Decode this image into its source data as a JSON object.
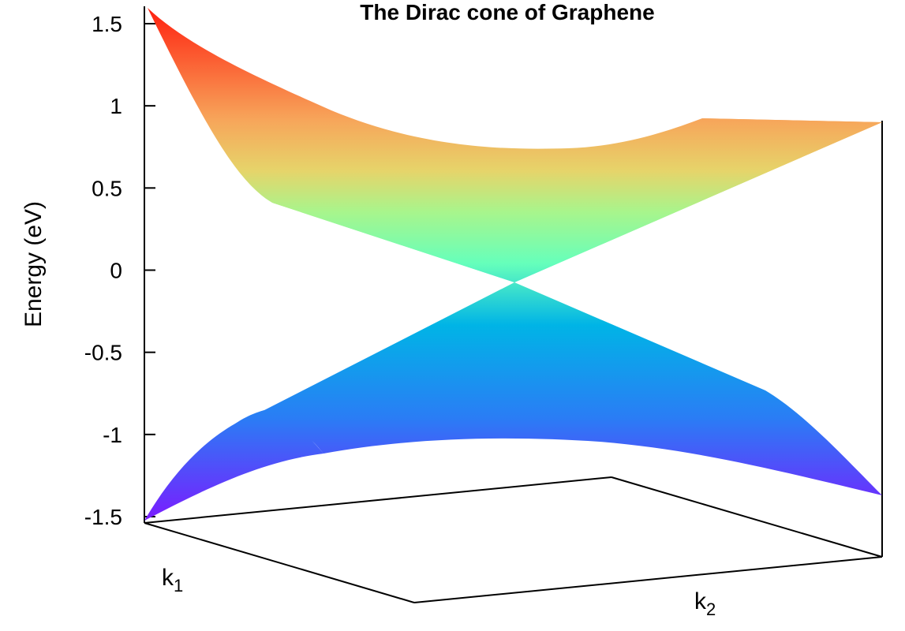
{
  "chart_data": {
    "type": "surface",
    "title": "The Dirac cone of Graphene",
    "zlabel": "Energy (eV)",
    "xlabel_base": "k",
    "xlabel_sub": "1",
    "ylabel_base": "k",
    "ylabel_sub": "2",
    "zlim": [
      -1.5,
      1.6
    ],
    "z_ticks": [
      {
        "value": 1.5,
        "label": "1.5"
      },
      {
        "value": 1,
        "label": "1"
      },
      {
        "value": 0.5,
        "label": "0.5"
      },
      {
        "value": 0,
        "label": "0"
      },
      {
        "value": -0.5,
        "label": "-0.5"
      },
      {
        "value": -1,
        "label": "-1"
      },
      {
        "value": -1.5,
        "label": "-1.5"
      }
    ],
    "series": [
      {
        "band": "conduction",
        "dirac_point_energy": 0,
        "corner_energies": [
          1.57,
          0.87,
          0.36,
          0.43
        ]
      },
      {
        "band": "valence",
        "dirac_point_energy": 0,
        "corner_energies": [
          -1.53,
          -1.37,
          -0.9,
          -1.13
        ]
      }
    ],
    "grid": false,
    "colormap": [
      "#7a1cff",
      "#00b4e6",
      "#66ffbb",
      "#e6d46a",
      "#ff1f0f"
    ]
  }
}
